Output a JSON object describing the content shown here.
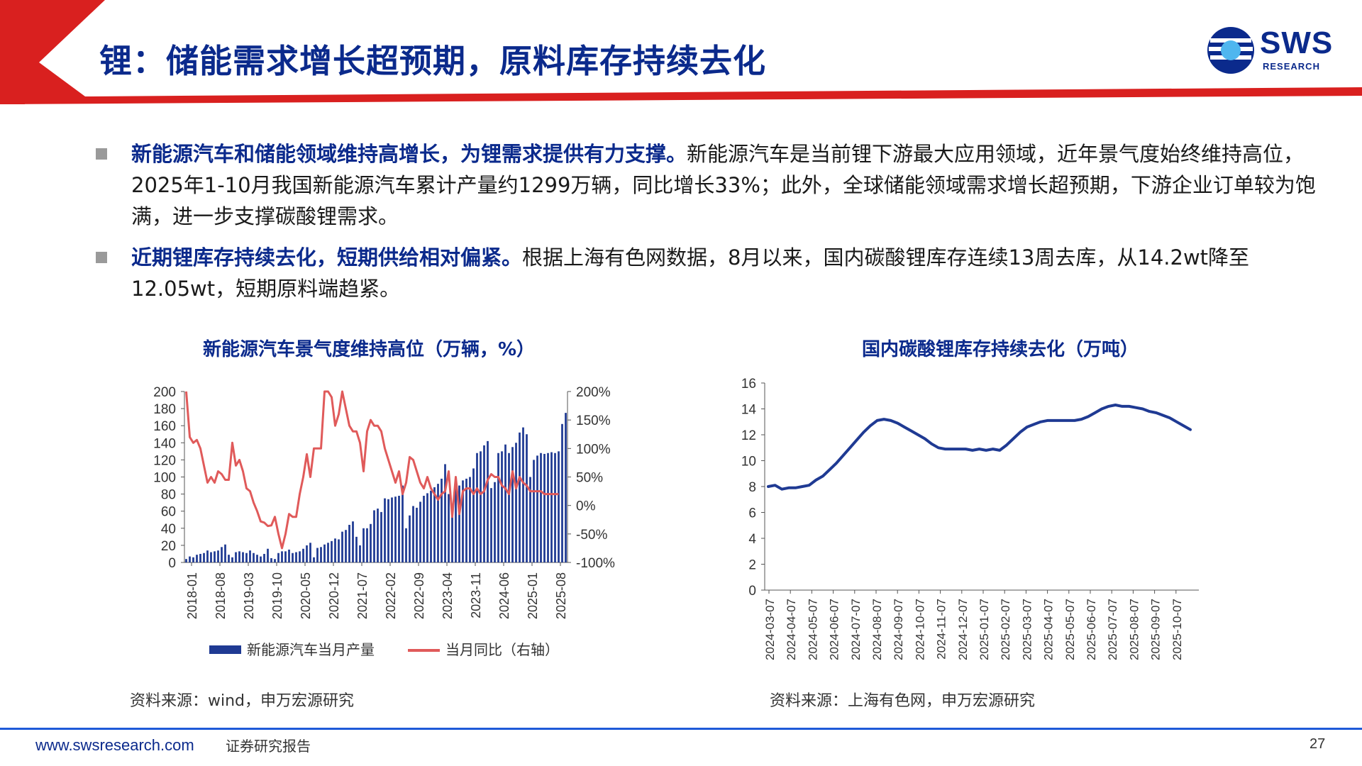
{
  "header": {
    "title": "锂：储能需求增长超预期，原料库存持续去化",
    "logo_text": "SWS",
    "logo_sub": "RESEARCH",
    "accent_color": "#d9201f",
    "title_color": "#0b2a8c"
  },
  "bullets": [
    {
      "bold": "新能源汽车和储能领域维持高增长，为锂需求提供有力支撑。",
      "text": "新能源汽车是当前锂下游最大应用领域，近年景气度始终维持高位，2025年1-10月我国新能源汽车累计产量约1299万辆，同比增长33%；此外，全球储能领域需求增长超预期，下游企业订单较为饱满，进一步支撑碳酸锂需求。"
    },
    {
      "bold": "近期锂库存持续去化，短期供给相对偏紧。",
      "text": "根据上海有色网数据，8月以来，国内碳酸锂库存连续13周去库，从14.2wt降至12.05wt，短期原料端趋紧。"
    }
  ],
  "chart_data": [
    {
      "type": "bar",
      "title": "新能源汽车景气度维持高位（万辆，%）",
      "source": "资料来源：wind，申万宏源研究",
      "bar_color": "#1f3a93",
      "line_color": "#e05a5a",
      "ylim": [
        0,
        200
      ],
      "yticks": [
        "0",
        "20",
        "40",
        "60",
        "80",
        "100",
        "120",
        "140",
        "160",
        "180",
        "200"
      ],
      "y2lim": [
        -100,
        200
      ],
      "y2ticks": [
        "-100%",
        "-50%",
        "0%",
        "50%",
        "100%",
        "150%",
        "200%"
      ],
      "xticks": [
        "2018-01",
        "2018-08",
        "2019-03",
        "2019-10",
        "2020-05",
        "2020-12",
        "2021-07",
        "2022-02",
        "2022-09",
        "2023-04",
        "2023-11",
        "2024-06",
        "2025-01",
        "2025-08"
      ],
      "series": [
        {
          "name": "新能源汽车当月产量",
          "axis": "left",
          "values": [
            4,
            7,
            6,
            9,
            10,
            11,
            14,
            12,
            13,
            14,
            18,
            21,
            9,
            6,
            12,
            13,
            12,
            11,
            14,
            11,
            9,
            7,
            10,
            16,
            5,
            4,
            11,
            13,
            13,
            15,
            11,
            12,
            13,
            16,
            20,
            23,
            6,
            17,
            18,
            21,
            23,
            25,
            28,
            27,
            36,
            38,
            44,
            48,
            30,
            20,
            40,
            40,
            45,
            61,
            63,
            59,
            75,
            74,
            76,
            77,
            78,
            90,
            40,
            55,
            66,
            64,
            71,
            78,
            81,
            84,
            88,
            92,
            98,
            115,
            80,
            55,
            90,
            90,
            96,
            98,
            100,
            110,
            128,
            130,
            137,
            142,
            87,
            94,
            128,
            130,
            138,
            128,
            135,
            140,
            152,
            158,
            150,
            100,
            120,
            125,
            128,
            127,
            128,
            129,
            128,
            130,
            162,
            175
          ]
        },
        {
          "name": "当月同比（右轴）",
          "axis": "right",
          "values": [
            200,
            120,
            110,
            115,
            100,
            70,
            40,
            50,
            40,
            60,
            55,
            45,
            45,
            110,
            70,
            80,
            60,
            30,
            25,
            5,
            -10,
            -28,
            -30,
            -36,
            -35,
            -20,
            -50,
            -75,
            -50,
            -15,
            -20,
            -20,
            20,
            50,
            90,
            50,
            100,
            100,
            100,
            200,
            200,
            190,
            140,
            160,
            200,
            170,
            140,
            130,
            130,
            110,
            60,
            130,
            150,
            140,
            140,
            130,
            100,
            80,
            60,
            40,
            60,
            20,
            40,
            85,
            80,
            60,
            40,
            30,
            50,
            30,
            20,
            10,
            20,
            25,
            60,
            -20,
            50,
            -15,
            25,
            30,
            30,
            20,
            30,
            20,
            25,
            45,
            55,
            50,
            50,
            35,
            30,
            20,
            60,
            30,
            50,
            40,
            35,
            25,
            25,
            25,
            25,
            20,
            20,
            20,
            20,
            20
          ]
        }
      ],
      "legend_position": "bottom"
    },
    {
      "type": "line",
      "title": "国内碳酸锂库存持续去化（万吨）",
      "source": "资料来源：上海有色网，申万宏源研究",
      "line_color": "#1f3a93",
      "ylim": [
        0,
        16
      ],
      "yticks": [
        "0",
        "2",
        "4",
        "6",
        "8",
        "10",
        "12",
        "14",
        "16"
      ],
      "xticks": [
        "2024-03-07",
        "2024-04-07",
        "2024-05-07",
        "2024-06-07",
        "2024-07-07",
        "2024-08-07",
        "2024-09-07",
        "2024-10-07",
        "2024-11-07",
        "2024-12-07",
        "2025-01-07",
        "2025-02-07",
        "2025-03-07",
        "2025-04-07",
        "2025-05-07",
        "2025-06-07",
        "2025-07-07",
        "2025-08-07",
        "2025-09-07",
        "2025-10-07"
      ],
      "series": [
        {
          "values": [
            8.0,
            8.1,
            7.8,
            7.9,
            7.9,
            8.0,
            8.1,
            8.5,
            8.8,
            9.3,
            9.8,
            10.4,
            11.0,
            11.6,
            12.2,
            12.7,
            13.1,
            13.2,
            13.1,
            12.9,
            12.6,
            12.3,
            12.0,
            11.7,
            11.3,
            11.0,
            10.9,
            10.9,
            10.9,
            10.9,
            10.8,
            10.9,
            10.8,
            10.9,
            10.8,
            11.2,
            11.7,
            12.2,
            12.6,
            12.8,
            13.0,
            13.1,
            13.1,
            13.1,
            13.1,
            13.1,
            13.2,
            13.4,
            13.7,
            14.0,
            14.2,
            14.3,
            14.2,
            14.2,
            14.1,
            14.0,
            13.8,
            13.7,
            13.5,
            13.3,
            13.0,
            12.7,
            12.4
          ]
        }
      ]
    }
  ],
  "footer": {
    "url": "www.swsresearch.com",
    "label": "证券研究报告",
    "page": "27"
  }
}
